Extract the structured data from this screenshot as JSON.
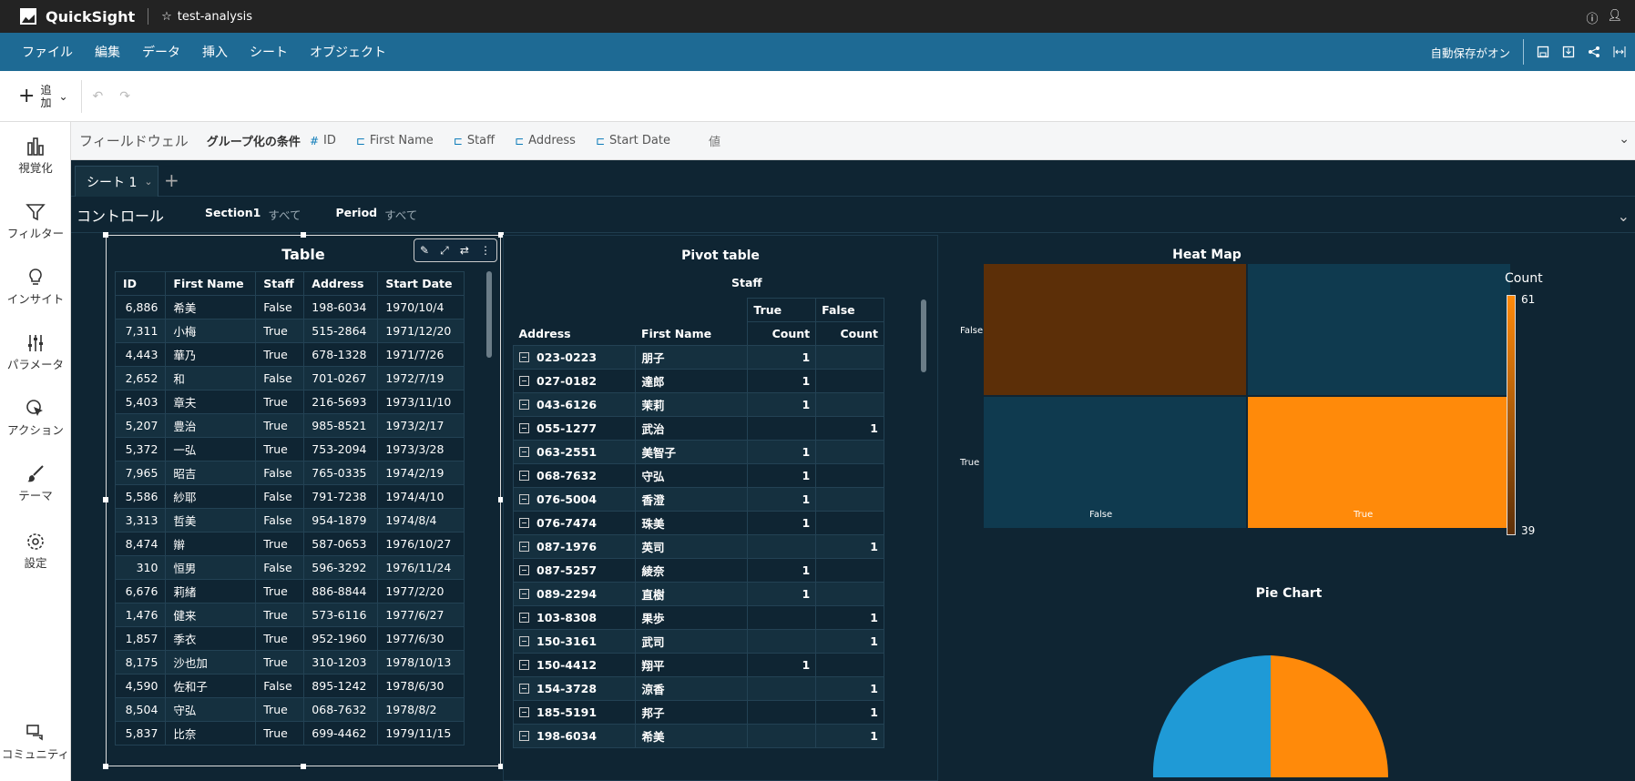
{
  "app": {
    "name": "QuickSight",
    "analysis_name": "test-analysis"
  },
  "menu": {
    "items": [
      "ファイル",
      "編集",
      "データ",
      "挿入",
      "シート",
      "オブジェクト"
    ],
    "autosave": "自動保存がオン"
  },
  "toolbar": {
    "add_label": "追加"
  },
  "leftnav": {
    "items": [
      "視覚化",
      "フィルター",
      "インサイト",
      "パラメータ",
      "アクション",
      "テーマ",
      "設定"
    ],
    "community": "コミュニティ"
  },
  "fieldwell": {
    "title": "フィールドウェル",
    "group_label": "グループ化の条件",
    "fields": [
      "ID",
      "First Name",
      "Staff",
      "Address",
      "Start Date"
    ],
    "values_label": "値"
  },
  "sheet": {
    "tab": "シート 1"
  },
  "controls": {
    "title": "コントロール",
    "items": [
      {
        "name": "Section1",
        "value": "すべて"
      },
      {
        "name": "Period",
        "value": "すべて"
      }
    ]
  },
  "table": {
    "title": "Table",
    "columns": [
      "ID",
      "First Name",
      "Staff",
      "Address",
      "Start Date"
    ],
    "rows": [
      [
        "6,886",
        "希美",
        "False",
        "198-6034",
        "1970/10/4"
      ],
      [
        "7,311",
        "小梅",
        "True",
        "515-2864",
        "1971/12/20"
      ],
      [
        "4,443",
        "華乃",
        "True",
        "678-1328",
        "1971/7/26"
      ],
      [
        "2,652",
        "和",
        "False",
        "701-0267",
        "1972/7/19"
      ],
      [
        "5,403",
        "章夫",
        "True",
        "216-5693",
        "1973/11/10"
      ],
      [
        "5,207",
        "豊治",
        "True",
        "985-8521",
        "1973/2/17"
      ],
      [
        "5,372",
        "一弘",
        "True",
        "753-2094",
        "1973/3/28"
      ],
      [
        "7,965",
        "昭吉",
        "False",
        "765-0335",
        "1974/2/19"
      ],
      [
        "5,586",
        "紗耶",
        "False",
        "791-7238",
        "1974/4/10"
      ],
      [
        "3,313",
        "哲美",
        "False",
        "954-1879",
        "1974/8/4"
      ],
      [
        "8,474",
        "辮",
        "True",
        "587-0653",
        "1976/10/27"
      ],
      [
        "310",
        "恒男",
        "False",
        "596-3292",
        "1976/11/24"
      ],
      [
        "6,676",
        "莉緒",
        "True",
        "886-8844",
        "1977/2/20"
      ],
      [
        "1,476",
        "健来",
        "True",
        "573-6116",
        "1977/6/27"
      ],
      [
        "1,857",
        "季衣",
        "True",
        "952-1960",
        "1977/6/30"
      ],
      [
        "8,175",
        "沙也加",
        "True",
        "310-1203",
        "1978/10/13"
      ],
      [
        "4,590",
        "佐和子",
        "False",
        "895-1242",
        "1978/6/30"
      ],
      [
        "8,504",
        "守弘",
        "True",
        "068-7632",
        "1978/8/2"
      ],
      [
        "5,837",
        "比奈",
        "True",
        "699-4462",
        "1979/11/15"
      ]
    ]
  },
  "pivot": {
    "title": "Pivot table",
    "col_group": "Staff",
    "col_values": [
      "True",
      "False"
    ],
    "measure": "Count",
    "row_headers": [
      "Address",
      "First Name"
    ],
    "rows": [
      [
        "023-0223",
        "朋子",
        "1",
        ""
      ],
      [
        "027-0182",
        "達郎",
        "1",
        ""
      ],
      [
        "043-6126",
        "茉莉",
        "1",
        ""
      ],
      [
        "055-1277",
        "武治",
        "",
        "1"
      ],
      [
        "063-2551",
        "美智子",
        "1",
        ""
      ],
      [
        "068-7632",
        "守弘",
        "1",
        ""
      ],
      [
        "076-5004",
        "香澄",
        "1",
        ""
      ],
      [
        "076-7474",
        "珠美",
        "1",
        ""
      ],
      [
        "087-1976",
        "英司",
        "",
        "1"
      ],
      [
        "087-5257",
        "綾奈",
        "1",
        ""
      ],
      [
        "089-2294",
        "直樹",
        "1",
        ""
      ],
      [
        "103-8308",
        "果歩",
        "",
        "1"
      ],
      [
        "150-3161",
        "武司",
        "",
        "1"
      ],
      [
        "150-4412",
        "翔平",
        "1",
        ""
      ],
      [
        "154-3728",
        "涼香",
        "",
        "1"
      ],
      [
        "185-5191",
        "邦子",
        "",
        "1"
      ],
      [
        "198-6034",
        "希美",
        "",
        "1"
      ]
    ]
  },
  "heatmap": {
    "title": "Heat Map",
    "legend_title": "Count",
    "legend_max": "61",
    "legend_min": "39",
    "x_labels": [
      "False",
      "True"
    ],
    "y_labels": [
      "False",
      "True"
    ],
    "colors": {
      "high": "#ff8a0a",
      "low": "#0f3a4f",
      "mid": "#5c2f08"
    }
  },
  "pie": {
    "title": "Pie Chart",
    "colors": [
      "#1f9ad6",
      "#ff8a0a"
    ]
  }
}
